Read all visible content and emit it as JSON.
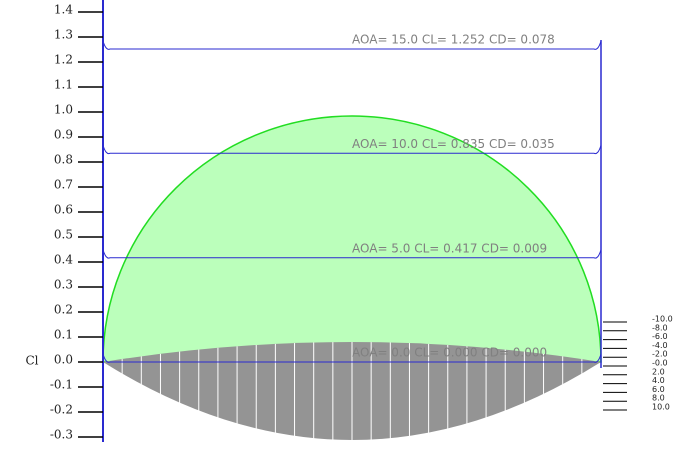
{
  "chart_data": {
    "type": "line",
    "ylabel": "Cl",
    "ylim": [
      -0.3,
      1.4
    ],
    "yticks": [
      1.4,
      1.3,
      1.2,
      1.1,
      {
        "value": 1,
        "label": "1.0"
      },
      0.9,
      0.8,
      0.7,
      0.6,
      0.5,
      0.4,
      0.3,
      0.2,
      0.1,
      {
        "value": 0,
        "label": "0.0"
      },
      -0.1,
      -0.2,
      -0.3
    ],
    "series": [
      {
        "name": "AOA= 15.0 CL= 1.252 CD= 0.078",
        "color": "#2a2ad0",
        "values": [
          1.252
        ]
      },
      {
        "name": "AOA= 10.0 CL= 0.835 CD= 0.035",
        "color": "#2a2ad0",
        "values": [
          0.835
        ]
      },
      {
        "name": "AOA= 5.0 CL= 0.417 CD= 0.009",
        "color": "#2a2ad0",
        "values": [
          0.417
        ]
      },
      {
        "name": "AOA= 0.0 CL= 0.000 CD= 0.000",
        "color": "#2a2ad0",
        "values": [
          0
        ]
      }
    ],
    "right_ticks": [
      {
        "value": -10,
        "label": "-10.0"
      },
      {
        "value": -8,
        "label": "-8.0"
      },
      {
        "value": -6,
        "label": "-6.0"
      },
      {
        "value": -4,
        "label": "-4.0"
      },
      {
        "value": -2,
        "label": "-2.0"
      },
      {
        "value": 0,
        "label": "-0.0"
      },
      {
        "value": 2,
        "label": "2.0"
      },
      {
        "value": 4,
        "label": "4.0"
      },
      {
        "value": 6,
        "label": "6.0"
      },
      {
        "value": 8,
        "label": "8.0"
      },
      {
        "value": 10,
        "label": "10.0"
      }
    ]
  }
}
